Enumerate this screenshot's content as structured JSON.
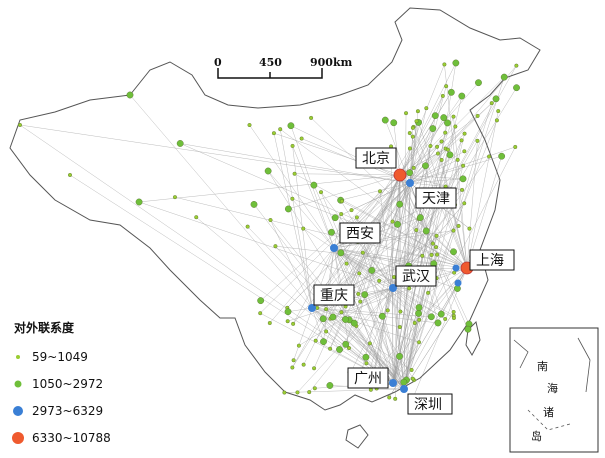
{
  "scale_bar": {
    "ticks": [
      "0",
      "450",
      "900"
    ],
    "unit": "km"
  },
  "legend": {
    "title": "对外联系度",
    "classes": [
      {
        "range": "59~1049",
        "color": "#9acd32"
      },
      {
        "range": "1050~2972",
        "color": "#6fbf3a"
      },
      {
        "range": "2973~6329",
        "color": "#3a7fd5"
      },
      {
        "range": "6330~10788",
        "color": "#ef5a2e"
      }
    ]
  },
  "cities": [
    {
      "name": "北京",
      "class": 3
    },
    {
      "name": "天津",
      "class": 2
    },
    {
      "name": "上海",
      "class": 3
    },
    {
      "name": "西安",
      "class": 2
    },
    {
      "name": "武汉",
      "class": 2
    },
    {
      "name": "重庆",
      "class": 2
    },
    {
      "name": "广州",
      "class": 2
    },
    {
      "name": "深圳",
      "class": 2
    }
  ],
  "inset": {
    "label": [
      "南",
      "海",
      "诸",
      "岛"
    ]
  }
}
